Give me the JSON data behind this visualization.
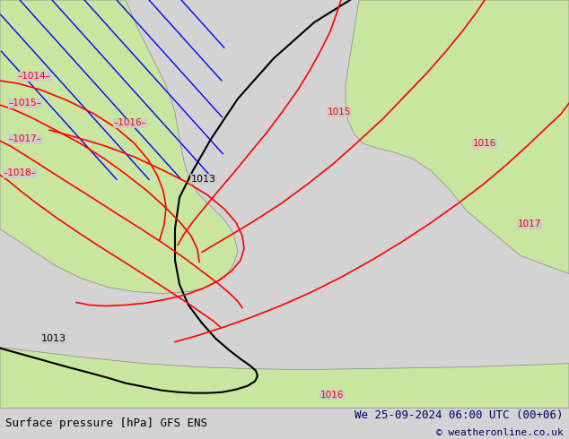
{
  "title_left": "Surface pressure [hPa] GFS ENS",
  "title_right": "We 25-09-2024 06:00 UTC (00+06)",
  "copyright": "© weatheronline.co.uk",
  "bg_color": "#c8e6a0",
  "sea_color": "#d3d3d3",
  "land_color": "#c8e6a0",
  "border_color": "#555555",
  "bottom_bar_color": "#e8e8e8",
  "fig_width": 6.34,
  "fig_height": 4.9,
  "dpi": 100
}
